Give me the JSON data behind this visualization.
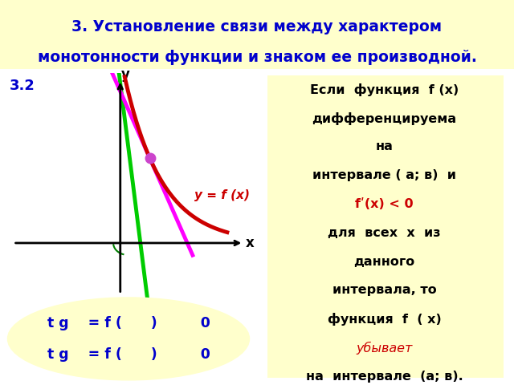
{
  "title_line1": "3. Установление связи между характером",
  "title_line2": "монотонности функции и знаком ее производной.",
  "title_color": "#0000cc",
  "title_bg": "#ffffcc",
  "bg_color": "#ffffff",
  "label_32": "3.2",
  "label_32_color": "#0000cc",
  "curve_color": "#cc0000",
  "tangent1_color": "#00cc00",
  "tangent2_color": "#ff00ff",
  "func_label": "y = f (x)",
  "func_label_color": "#cc0000",
  "right_box_bg": "#ffffcc",
  "bottom_ellipse_bg": "#ffffcc",
  "bottom_text_line1": "t g    = f (      )         0",
  "bottom_text_line2": "t g    = f (      )         0",
  "bottom_text_color": "#0000cc",
  "axis_color": "#000000",
  "dot1_color": "#008000",
  "dot2_color": "#cc44cc",
  "right_lines": [
    {
      "text": "Если  функция  f (x)",
      "color": "#000000",
      "italic": false,
      "bold": true
    },
    {
      "text": "дифференцируема",
      "color": "#000000",
      "italic": false,
      "bold": true
    },
    {
      "text": "на",
      "color": "#000000",
      "italic": false,
      "bold": true
    },
    {
      "text": "интервале ( а; в)  и",
      "color": "#000000",
      "italic": false,
      "bold": true
    },
    {
      "text": "fʹ(x) < 0",
      "color": "#cc0000",
      "italic": false,
      "bold": true
    },
    {
      "text": "для  всех  x  из",
      "color": "#000000",
      "italic": false,
      "bold": true
    },
    {
      "text": "данного",
      "color": "#000000",
      "italic": false,
      "bold": true
    },
    {
      "text": "интервала, то",
      "color": "#000000",
      "italic": false,
      "bold": true
    },
    {
      "text": "функция  f  ( x)",
      "color": "#000000",
      "italic": false,
      "bold": true
    },
    {
      "text": "убывает",
      "color": "#cc0000",
      "italic": true,
      "bold": false
    },
    {
      "text": "на  интервале  (а; в).",
      "color": "#000000",
      "italic": false,
      "bold": true
    }
  ]
}
